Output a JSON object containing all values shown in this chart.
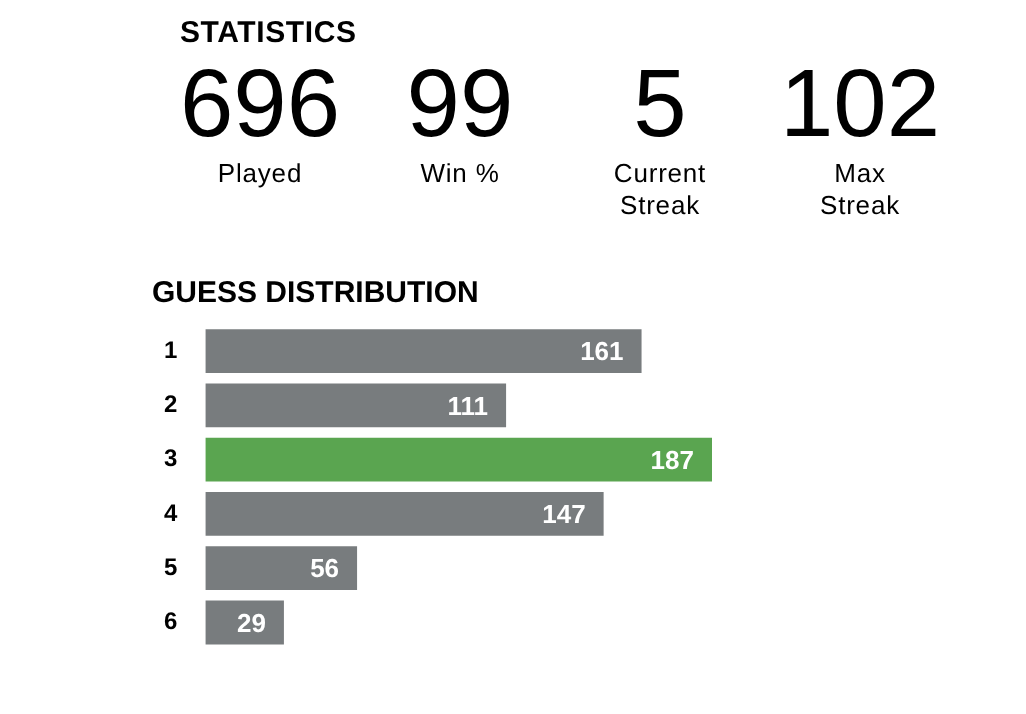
{
  "chart_data": [
    {
      "type": "other",
      "title": "STATISTICS",
      "annotations": [
        "696",
        "Played",
        "99",
        "Win %",
        "5",
        "Current Streak",
        "102",
        "Max Streak"
      ]
    },
    {
      "type": "bar",
      "title": "GUESS DISTRIBUTION",
      "orientation": "horizontal",
      "categories": [
        "1",
        "2",
        "3",
        "4",
        "5",
        "6"
      ],
      "values": [
        161,
        111,
        187,
        147,
        56,
        29
      ],
      "colors": [
        "#787c7e",
        "#787c7e",
        "#5aa550",
        "#787c7e",
        "#787c7e",
        "#787c7e"
      ],
      "data_labels": true,
      "tick_labels": "y",
      "legend": false
    }
  ]
}
